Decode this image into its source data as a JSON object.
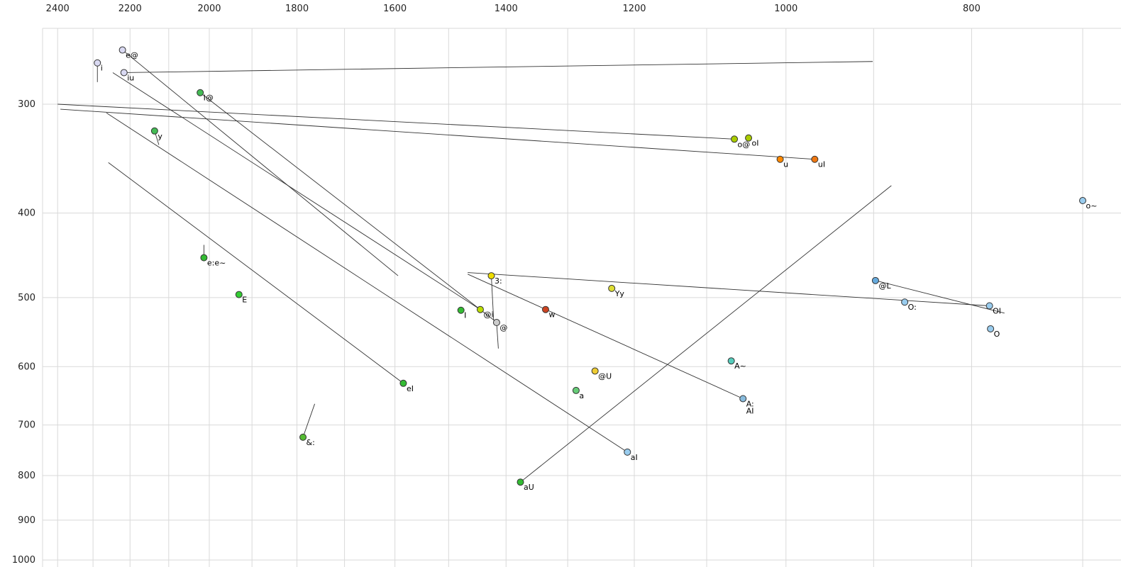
{
  "chart_data": {
    "type": "scatter",
    "description": "Vowel formant plot (F2 horizontal reversed log scale, F1 vertical reversed log scale) with diphthong trajectory lines",
    "grid": true,
    "grid_color": "#d9d9d9",
    "line_color": "#333333",
    "x_axis": {
      "ticks": [
        2400,
        2200,
        2000,
        1800,
        1600,
        1400,
        1200,
        1000,
        800
      ],
      "scale": "log",
      "reversed": true,
      "grid_min": 700,
      "grid_max": 2400,
      "grid_step": 100
    },
    "y_axis": {
      "ticks": [
        300,
        400,
        500,
        600,
        700,
        800,
        900,
        1000
      ],
      "scale": "log",
      "reversed": true,
      "grid_min": 300,
      "grid_max": 1000,
      "grid_step": 100
    },
    "points": [
      {
        "label": "i",
        "f2": 2288,
        "f1": 269,
        "color": "#d9d9f2"
      },
      {
        "label": "e@",
        "f2": 2220,
        "f1": 260,
        "color": "#d9d9f2"
      },
      {
        "label": "iu",
        "f2": 2216,
        "f1": 276,
        "color": "#d9d9f2"
      },
      {
        "label": "I@",
        "f2": 2022,
        "f1": 291,
        "color": "#44bb55"
      },
      {
        "label": "y",
        "f2": 2136,
        "f1": 322,
        "color": "#44bb55"
      },
      {
        "label": "o@",
        "f2": 1064,
        "f1": 329,
        "color": "#aacc00"
      },
      {
        "label": "oI",
        "f2": 1046,
        "f1": 328,
        "color": "#aacc00"
      },
      {
        "label": "u",
        "f2": 1007,
        "f1": 347,
        "color": "#ff8800"
      },
      {
        "label": "uI",
        "f2": 966,
        "f1": 347,
        "color": "#ee7711"
      },
      {
        "label": "o~",
        "f2": 700,
        "f1": 387,
        "color": "#99ccee"
      },
      {
        "label": "e:e~",
        "f2": 2013,
        "f1": 450,
        "color": "#33bb33"
      },
      {
        "label": "E",
        "f2": 1930,
        "f1": 496,
        "color": "#33cc33"
      },
      {
        "label": "3:",
        "f2": 1425,
        "f1": 472,
        "color": "#eedd00"
      },
      {
        "label": "Yy",
        "f2": 1233,
        "f1": 488,
        "color": "#dddd33"
      },
      {
        "label": "I",
        "f2": 1478,
        "f1": 517,
        "color": "#33bb33"
      },
      {
        "label": "@i",
        "f2": 1444,
        "f1": 516,
        "color": "#bbdd00"
      },
      {
        "label": "@",
        "f2": 1416,
        "f1": 534,
        "color": "#cccccc"
      },
      {
        "label": "w",
        "f2": 1335,
        "f1": 516,
        "color": "#cc4422"
      },
      {
        "label": "@L",
        "f2": 898,
        "f1": 478,
        "color": "#66aadd"
      },
      {
        "label": "O:",
        "f2": 867,
        "f1": 506,
        "color": "#99ccee"
      },
      {
        "label": "OI",
        "f2": 783,
        "f1": 511,
        "color": "#99ccee"
      },
      {
        "label": "O",
        "f2": 782,
        "f1": 543,
        "color": "#99ccee"
      },
      {
        "label": "A~",
        "f2": 1068,
        "f1": 591,
        "color": "#55ccbb"
      },
      {
        "label": "@U",
        "f2": 1258,
        "f1": 607,
        "color": "#eecc33"
      },
      {
        "label": "a",
        "f2": 1287,
        "f1": 639,
        "color": "#66cc77"
      },
      {
        "label": "A:\nAI",
        "f2": 1053,
        "f1": 653,
        "color": "#88bbdd"
      },
      {
        "label": "eI",
        "f2": 1584,
        "f1": 627,
        "color": "#33bb33"
      },
      {
        "label": "&:",
        "f2": 1787,
        "f1": 723,
        "color": "#55bb33"
      },
      {
        "label": "aI",
        "f2": 1210,
        "f1": 752,
        "color": "#99ccee"
      },
      {
        "label": "aU",
        "f2": 1376,
        "f1": 814,
        "color": "#33bb33"
      }
    ],
    "trajectories": [
      {
        "name": "iu-glide",
        "from": [
          2216,
          276
        ],
        "to": [
          901,
          268
        ]
      },
      {
        "name": "o@-glide",
        "from": [
          2400,
          300
        ],
        "to": [
          1064,
          329
        ]
      },
      {
        "name": "uI-glide",
        "from": [
          2392,
          304
        ],
        "to": [
          966,
          347
        ]
      },
      {
        "name": "e@-glide",
        "from": [
          2220,
          260
        ],
        "to": [
          1594,
          472
        ]
      },
      {
        "name": "I@-glide",
        "from": [
          2022,
          291
        ],
        "to": [
          1417,
          533
        ]
      },
      {
        "name": "@i-glide",
        "from": [
          1444,
          516
        ],
        "to": [
          2246,
          276
        ]
      },
      {
        "name": "eI-glide",
        "from": [
          1584,
          627
        ],
        "to": [
          2258,
          350
        ]
      },
      {
        "name": "aU-glide",
        "from": [
          1376,
          814
        ],
        "to": [
          881,
          372
        ]
      },
      {
        "name": "aI-glide",
        "from": [
          1210,
          752
        ],
        "to": [
          2263,
          307
        ]
      },
      {
        "name": "AI-glide",
        "from": [
          1053,
          653
        ],
        "to": [
          1466,
          470
        ]
      },
      {
        "name": "OI-glide",
        "from": [
          783,
          511
        ],
        "to": [
          1466,
          468
        ]
      },
      {
        "name": "@L-glide",
        "from": [
          898,
          478
        ],
        "to": [
          769,
          521
        ]
      },
      {
        "name": "i-tick",
        "from": [
          2288,
          269
        ],
        "to": [
          2288,
          283
        ]
      },
      {
        "name": "y-tick",
        "from": [
          2136,
          322
        ],
        "to": [
          2125,
          334
        ]
      },
      {
        "name": "e:-tick",
        "from": [
          2013,
          435
        ],
        "to": [
          2013,
          450
        ]
      },
      {
        "name": "@-tick",
        "from": [
          1416,
          534
        ],
        "to": [
          1413,
          572
        ]
      },
      {
        "name": "&:-tick",
        "from": [
          1787,
          723
        ],
        "to": [
          1762,
          662
        ]
      },
      {
        "name": "3:-tick",
        "from": [
          1425,
          472
        ],
        "to": [
          1421,
          531
        ]
      }
    ]
  }
}
